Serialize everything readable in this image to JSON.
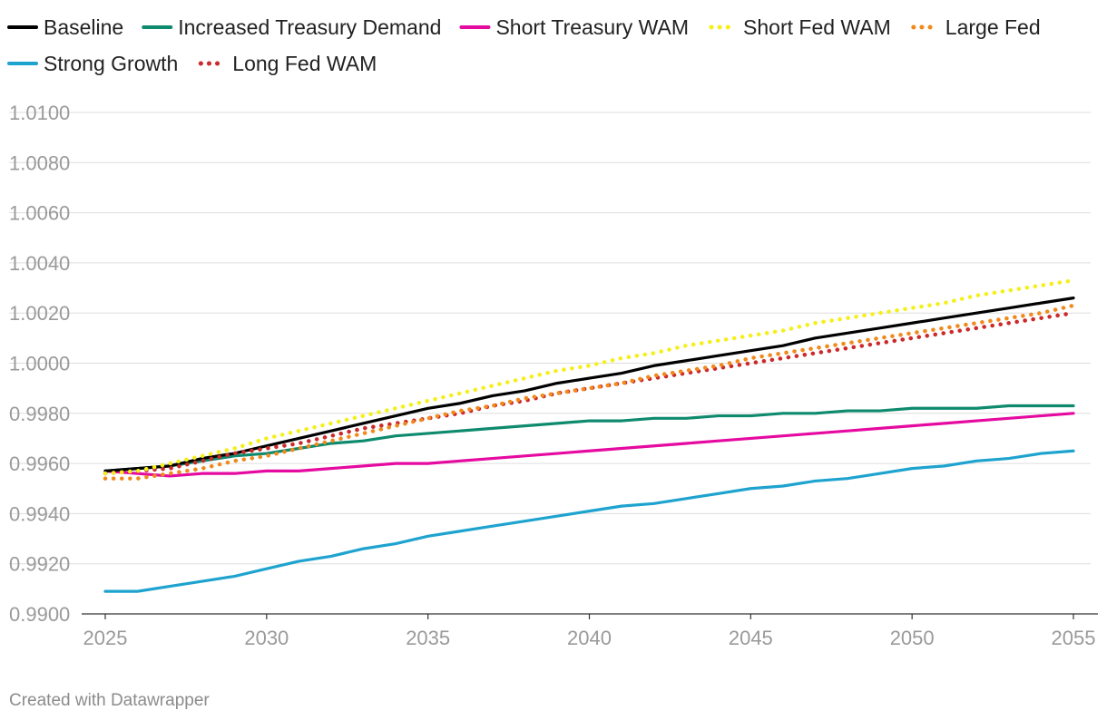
{
  "chart_data": {
    "type": "line",
    "title": "",
    "xlabel": "",
    "ylabel": "",
    "x": [
      2025,
      2026,
      2027,
      2028,
      2029,
      2030,
      2031,
      2032,
      2033,
      2034,
      2035,
      2036,
      2037,
      2038,
      2039,
      2040,
      2041,
      2042,
      2043,
      2044,
      2045,
      2046,
      2047,
      2048,
      2049,
      2050,
      2051,
      2052,
      2053,
      2054,
      2055
    ],
    "xlim": [
      2025,
      2055
    ],
    "ylim": [
      0.99,
      1.01
    ],
    "x_ticks": [
      2025,
      2030,
      2035,
      2040,
      2045,
      2050,
      2055
    ],
    "x_tick_labels": [
      "2025",
      "2030",
      "2035",
      "2040",
      "2045",
      "2050",
      "2055"
    ],
    "y_ticks": [
      0.99,
      0.992,
      0.994,
      0.996,
      0.998,
      1.0,
      1.002,
      1.004,
      1.006,
      1.008,
      1.01
    ],
    "y_tick_labels": [
      "0.9900",
      "0.9920",
      "0.9940",
      "0.9960",
      "0.9980",
      "1.0000",
      "1.0020",
      "1.0040",
      "1.0060",
      "1.0080",
      "1.0100"
    ],
    "grid": true,
    "legend_position": "top",
    "series": [
      {
        "name": "Baseline",
        "color": "#000000",
        "style": "solid",
        "values": [
          0.9957,
          0.9958,
          0.9959,
          0.9962,
          0.9964,
          0.9967,
          0.997,
          0.9973,
          0.9976,
          0.9979,
          0.9982,
          0.9984,
          0.9987,
          0.9989,
          0.9992,
          0.9994,
          0.9996,
          0.9999,
          1.0001,
          1.0003,
          1.0005,
          1.0007,
          1.001,
          1.0012,
          1.0014,
          1.0016,
          1.0018,
          1.002,
          1.0022,
          1.0024,
          1.0026
        ]
      },
      {
        "name": "Increased Treasury Demand",
        "color": "#0e8a6e",
        "style": "solid",
        "values": [
          0.9957,
          0.9958,
          0.9959,
          0.9961,
          0.9963,
          0.9964,
          0.9966,
          0.9968,
          0.9969,
          0.9971,
          0.9972,
          0.9973,
          0.9974,
          0.9975,
          0.9976,
          0.9977,
          0.9977,
          0.9978,
          0.9978,
          0.9979,
          0.9979,
          0.998,
          0.998,
          0.9981,
          0.9981,
          0.9982,
          0.9982,
          0.9982,
          0.9983,
          0.9983,
          0.9983
        ]
      },
      {
        "name": "Short Treasury WAM",
        "color": "#e50aa0",
        "style": "solid",
        "values": [
          0.9957,
          0.9956,
          0.9955,
          0.9956,
          0.9956,
          0.9957,
          0.9957,
          0.9958,
          0.9959,
          0.996,
          0.996,
          0.9961,
          0.9962,
          0.9963,
          0.9964,
          0.9965,
          0.9966,
          0.9967,
          0.9968,
          0.9969,
          0.997,
          0.9971,
          0.9972,
          0.9973,
          0.9974,
          0.9975,
          0.9976,
          0.9977,
          0.9978,
          0.9979,
          0.998
        ]
      },
      {
        "name": "Short Fed WAM",
        "color": "#f5ef1a",
        "style": "dotted",
        "values": [
          0.9956,
          0.9957,
          0.996,
          0.9963,
          0.9966,
          0.997,
          0.9973,
          0.9976,
          0.9979,
          0.9982,
          0.9985,
          0.9988,
          0.9991,
          0.9994,
          0.9997,
          0.9999,
          1.0002,
          1.0004,
          1.0007,
          1.0009,
          1.0011,
          1.0013,
          1.0016,
          1.0018,
          1.002,
          1.0022,
          1.0024,
          1.0027,
          1.0029,
          1.0031,
          1.0033
        ]
      },
      {
        "name": "Large Fed",
        "color": "#f08a1c",
        "style": "dotted",
        "values": [
          0.9954,
          0.9954,
          0.9956,
          0.9958,
          0.9961,
          0.9963,
          0.9966,
          0.9969,
          0.9972,
          0.9975,
          0.9978,
          0.9981,
          0.9983,
          0.9986,
          0.9988,
          0.999,
          0.9992,
          0.9995,
          0.9997,
          0.9999,
          1.0002,
          1.0004,
          1.0006,
          1.0008,
          1.001,
          1.0012,
          1.0014,
          1.0016,
          1.0018,
          1.002,
          1.0023
        ]
      },
      {
        "name": "Strong Growth",
        "color": "#1ea3cf",
        "style": "solid",
        "values": [
          0.9909,
          0.9909,
          0.9911,
          0.9913,
          0.9915,
          0.9918,
          0.9921,
          0.9923,
          0.9926,
          0.9928,
          0.9931,
          0.9933,
          0.9935,
          0.9937,
          0.9939,
          0.9941,
          0.9943,
          0.9944,
          0.9946,
          0.9948,
          0.995,
          0.9951,
          0.9953,
          0.9954,
          0.9956,
          0.9958,
          0.9959,
          0.9961,
          0.9962,
          0.9964,
          0.9965
        ]
      },
      {
        "name": "Long Fed WAM",
        "color": "#cc2a2a",
        "style": "dotted",
        "values": [
          0.9956,
          0.9957,
          0.9958,
          0.9961,
          0.9964,
          0.9966,
          0.9968,
          0.9971,
          0.9974,
          0.9976,
          0.9978,
          0.998,
          0.9983,
          0.9985,
          0.9988,
          0.999,
          0.9992,
          0.9994,
          0.9996,
          0.9998,
          1.0,
          1.0002,
          1.0004,
          1.0006,
          1.0008,
          1.001,
          1.0012,
          1.0014,
          1.0016,
          1.0018,
          1.002
        ]
      }
    ],
    "credit": "Created with Datawrapper"
  }
}
